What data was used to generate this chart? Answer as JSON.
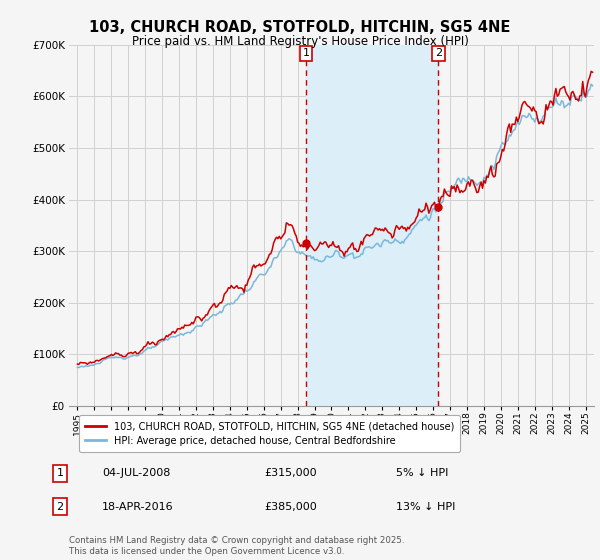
{
  "title": "103, CHURCH ROAD, STOTFOLD, HITCHIN, SG5 4NE",
  "subtitle": "Price paid vs. HM Land Registry's House Price Index (HPI)",
  "legend_line1": "103, CHURCH ROAD, STOTFOLD, HITCHIN, SG5 4NE (detached house)",
  "legend_line2": "HPI: Average price, detached house, Central Bedfordshire",
  "footnote": "Contains HM Land Registry data © Crown copyright and database right 2025.\nThis data is licensed under the Open Government Licence v3.0.",
  "marker1_date": "04-JUL-2008",
  "marker1_price": "£315,000",
  "marker1_hpi": "5% ↓ HPI",
  "marker1_x": 2008.5,
  "marker1_y": 315000,
  "marker2_date": "18-APR-2016",
  "marker2_price": "£385,000",
  "marker2_hpi": "13% ↓ HPI",
  "marker2_x": 2016.3,
  "marker2_y": 385000,
  "shade_start": 2008.5,
  "shade_end": 2016.3,
  "ylim": [
    0,
    700000
  ],
  "xlim": [
    1994.5,
    2025.5
  ],
  "yticks": [
    0,
    100000,
    200000,
    300000,
    400000,
    500000,
    600000,
    700000
  ],
  "ytick_labels": [
    "£0",
    "£100K",
    "£200K",
    "£300K",
    "£400K",
    "£500K",
    "£600K",
    "£700K"
  ],
  "hpi_color": "#7ab8d9",
  "price_color": "#cc0000",
  "shade_color": "#dceef7",
  "marker_color": "#cc0000",
  "grid_color": "#d0d0d0",
  "background_color": "#f5f5f5"
}
